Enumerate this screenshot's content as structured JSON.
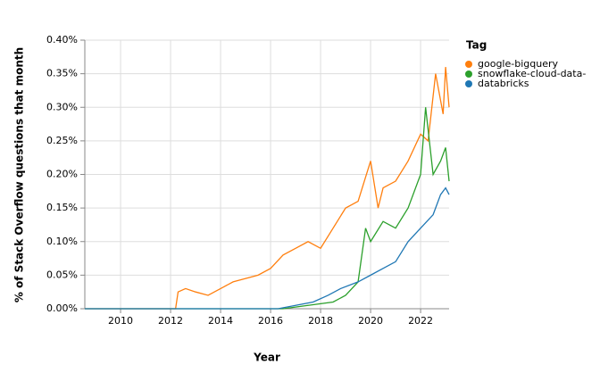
{
  "chart_data": {
    "type": "line",
    "x_label": "Year",
    "y_label": "% of Stack Overflow questions that month",
    "legend_title": "Tag",
    "legend": "right",
    "grid": true,
    "xlim": [
      2008.57,
      2023.14
    ],
    "xticks": [
      2010,
      2012,
      2014,
      2016,
      2018,
      2020,
      2022
    ],
    "ylim": [
      0,
      0.4
    ],
    "yticks": [
      {
        "value": 0,
        "label": "0.00%"
      },
      {
        "value": 0.05,
        "label": "0.05%"
      },
      {
        "value": 0.1,
        "label": "0.10%"
      },
      {
        "value": 0.15,
        "label": "0.15%"
      },
      {
        "value": 0.2,
        "label": "0.20%"
      },
      {
        "value": 0.25,
        "label": "0.25%"
      },
      {
        "value": 0.3,
        "label": "0.30%"
      },
      {
        "value": 0.35,
        "label": "0.35%"
      },
      {
        "value": 0.4,
        "label": "0.40%"
      }
    ],
    "series": [
      {
        "name": "google-bigquery",
        "color": "#ff7f0e",
        "x": [
          2008.57,
          2012.2,
          2012.3,
          2012.6,
          2013.0,
          2013.5,
          2014.0,
          2014.5,
          2015.0,
          2015.5,
          2016.0,
          2016.5,
          2017.0,
          2017.5,
          2018.0,
          2018.5,
          2019.0,
          2019.5,
          2020.0,
          2020.3,
          2020.5,
          2021.0,
          2021.5,
          2022.0,
          2022.3,
          2022.6,
          2022.9,
          2023.0,
          2023.14
        ],
        "values": [
          0,
          0,
          0.025,
          0.03,
          0.025,
          0.02,
          0.03,
          0.04,
          0.045,
          0.05,
          0.06,
          0.08,
          0.09,
          0.1,
          0.09,
          0.12,
          0.15,
          0.16,
          0.22,
          0.15,
          0.18,
          0.19,
          0.22,
          0.26,
          0.25,
          0.35,
          0.29,
          0.36,
          0.3
        ]
      },
      {
        "name": "snowflake-cloud-data-",
        "color": "#2ca02c",
        "x": [
          2008.57,
          2016.5,
          2017.5,
          2018.5,
          2019.0,
          2019.5,
          2019.8,
          2020.0,
          2020.5,
          2021.0,
          2021.5,
          2022.0,
          2022.2,
          2022.5,
          2022.8,
          2023.0,
          2023.14
        ],
        "values": [
          0,
          0,
          0.005,
          0.01,
          0.02,
          0.04,
          0.12,
          0.1,
          0.13,
          0.12,
          0.15,
          0.2,
          0.3,
          0.2,
          0.22,
          0.24,
          0.19
        ]
      },
      {
        "name": "databricks",
        "color": "#1f77b4",
        "x": [
          2008.57,
          2016.3,
          2017.0,
          2017.7,
          2018.3,
          2018.8,
          2019.5,
          2020.0,
          2020.5,
          2021.0,
          2021.5,
          2022.0,
          2022.5,
          2022.8,
          2023.0,
          2023.14
        ],
        "values": [
          0,
          0,
          0.005,
          0.01,
          0.02,
          0.03,
          0.04,
          0.05,
          0.06,
          0.07,
          0.1,
          0.12,
          0.14,
          0.17,
          0.18,
          0.17
        ]
      }
    ]
  }
}
